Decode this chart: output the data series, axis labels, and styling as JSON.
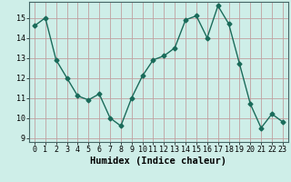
{
  "x": [
    0,
    1,
    2,
    3,
    4,
    5,
    6,
    7,
    8,
    9,
    10,
    11,
    12,
    13,
    14,
    15,
    16,
    17,
    18,
    19,
    20,
    21,
    22,
    23
  ],
  "y": [
    14.6,
    15.0,
    12.9,
    12.0,
    11.1,
    10.9,
    11.2,
    10.0,
    9.6,
    11.0,
    12.1,
    12.9,
    13.1,
    13.5,
    14.9,
    15.1,
    14.0,
    15.6,
    14.7,
    12.7,
    10.7,
    9.5,
    10.2,
    9.8
  ],
  "line_color": "#1a6b5a",
  "marker": "D",
  "markersize": 2.5,
  "linewidth": 1.0,
  "xlabel": "Humidex (Indice chaleur)",
  "xlim": [
    -0.5,
    23.5
  ],
  "ylim": [
    8.8,
    15.8
  ],
  "yticks": [
    9,
    10,
    11,
    12,
    13,
    14,
    15
  ],
  "xticks": [
    0,
    1,
    2,
    3,
    4,
    5,
    6,
    7,
    8,
    9,
    10,
    11,
    12,
    13,
    14,
    15,
    16,
    17,
    18,
    19,
    20,
    21,
    22,
    23
  ],
  "grid_color": "#c0a0a0",
  "bg_color": "#ceeee8",
  "tick_labelsize": 6,
  "xlabel_fontsize": 7.5
}
